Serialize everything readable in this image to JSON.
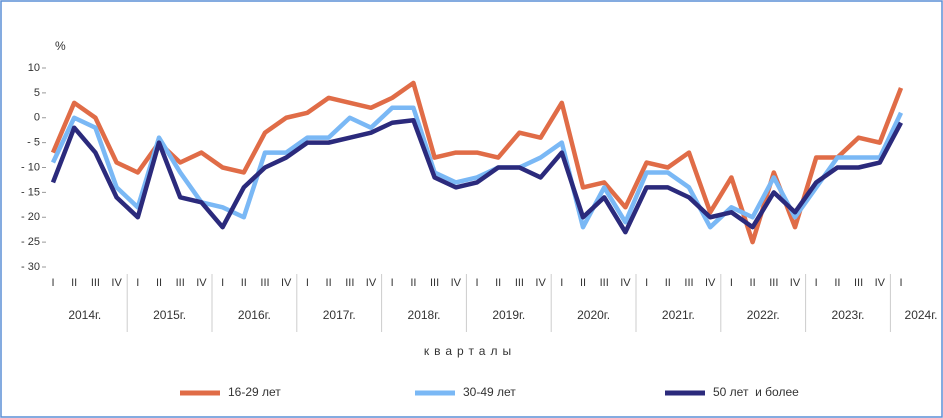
{
  "chart_data": {
    "type": "line",
    "y_label": "%",
    "x_label": "кварталы",
    "categories": [
      "I",
      "II",
      "III",
      "IV",
      "I",
      "II",
      "III",
      "IV",
      "I",
      "II",
      "III",
      "IV",
      "I",
      "II",
      "III",
      "IV",
      "I",
      "II",
      "III",
      "IV",
      "I",
      "II",
      "III",
      "IV",
      "I",
      "II",
      "III",
      "IV",
      "I",
      "II",
      "III",
      "IV",
      "I",
      "II",
      "III",
      "IV",
      "I",
      "II",
      "III",
      "IV",
      "I"
    ],
    "groups": [
      "2014г.",
      "2015г.",
      "2016г.",
      "2017г.",
      "2018г.",
      "2019г.",
      "2020г.",
      "2021г.",
      "2022г.",
      "2023г.",
      "2024г."
    ],
    "group_size": 4,
    "ylim": [
      -30,
      10
    ],
    "yticks": [
      {
        "value": -30,
        "label": "- 30"
      },
      {
        "value": -25,
        "label": "- 25"
      },
      {
        "value": -20,
        "label": "- 20"
      },
      {
        "value": -15,
        "label": "- 15"
      },
      {
        "value": -10,
        "label": "- 10"
      },
      {
        "value": -5,
        "label": "- 5"
      },
      0,
      5,
      10
    ],
    "grid": false,
    "legend": "bottom",
    "series": [
      {
        "name": "16-29 лет",
        "color": "#e06c47",
        "values": [
          -7,
          3,
          0,
          -9,
          -11,
          -5,
          -9,
          -7,
          -10,
          -11,
          -3,
          0,
          1,
          4,
          3,
          2,
          4,
          7,
          -8,
          -7,
          -7,
          -8,
          -3,
          -4,
          3,
          -14,
          -13,
          -18,
          -9,
          -10,
          -7,
          -19,
          -12,
          -25,
          -11,
          -22,
          -8,
          -8,
          -4,
          -5,
          6
        ]
      },
      {
        "name": "30-49 лет",
        "color": "#7ab8f5",
        "values": [
          -9,
          0,
          -2,
          -14,
          -18,
          -4,
          -11,
          -17,
          -18,
          -20,
          -7,
          -7,
          -4,
          -4,
          0,
          -2,
          2,
          2,
          -11,
          -13,
          -12,
          -10,
          -10,
          -8,
          -5,
          -22,
          -14,
          -21,
          -11,
          -11,
          -14,
          -22,
          -18,
          -20,
          -12,
          -20,
          -14,
          -8,
          -8,
          -8,
          1
        ]
      },
      {
        "name": "50 лет  и более",
        "color": "#2b2a7c",
        "values": [
          -13,
          -2,
          -7,
          -16,
          -20,
          -5,
          -16,
          -17,
          -22,
          -14,
          -10,
          -8,
          -5,
          -5,
          -4,
          -3,
          -1,
          -0.5,
          -12,
          -14,
          -13,
          -10,
          -10,
          -12,
          -7,
          -20,
          -16,
          -23,
          -14,
          -14,
          -16,
          -20,
          -19,
          -22,
          -15,
          -19,
          -13,
          -10,
          -10,
          -9,
          -1
        ]
      }
    ]
  }
}
